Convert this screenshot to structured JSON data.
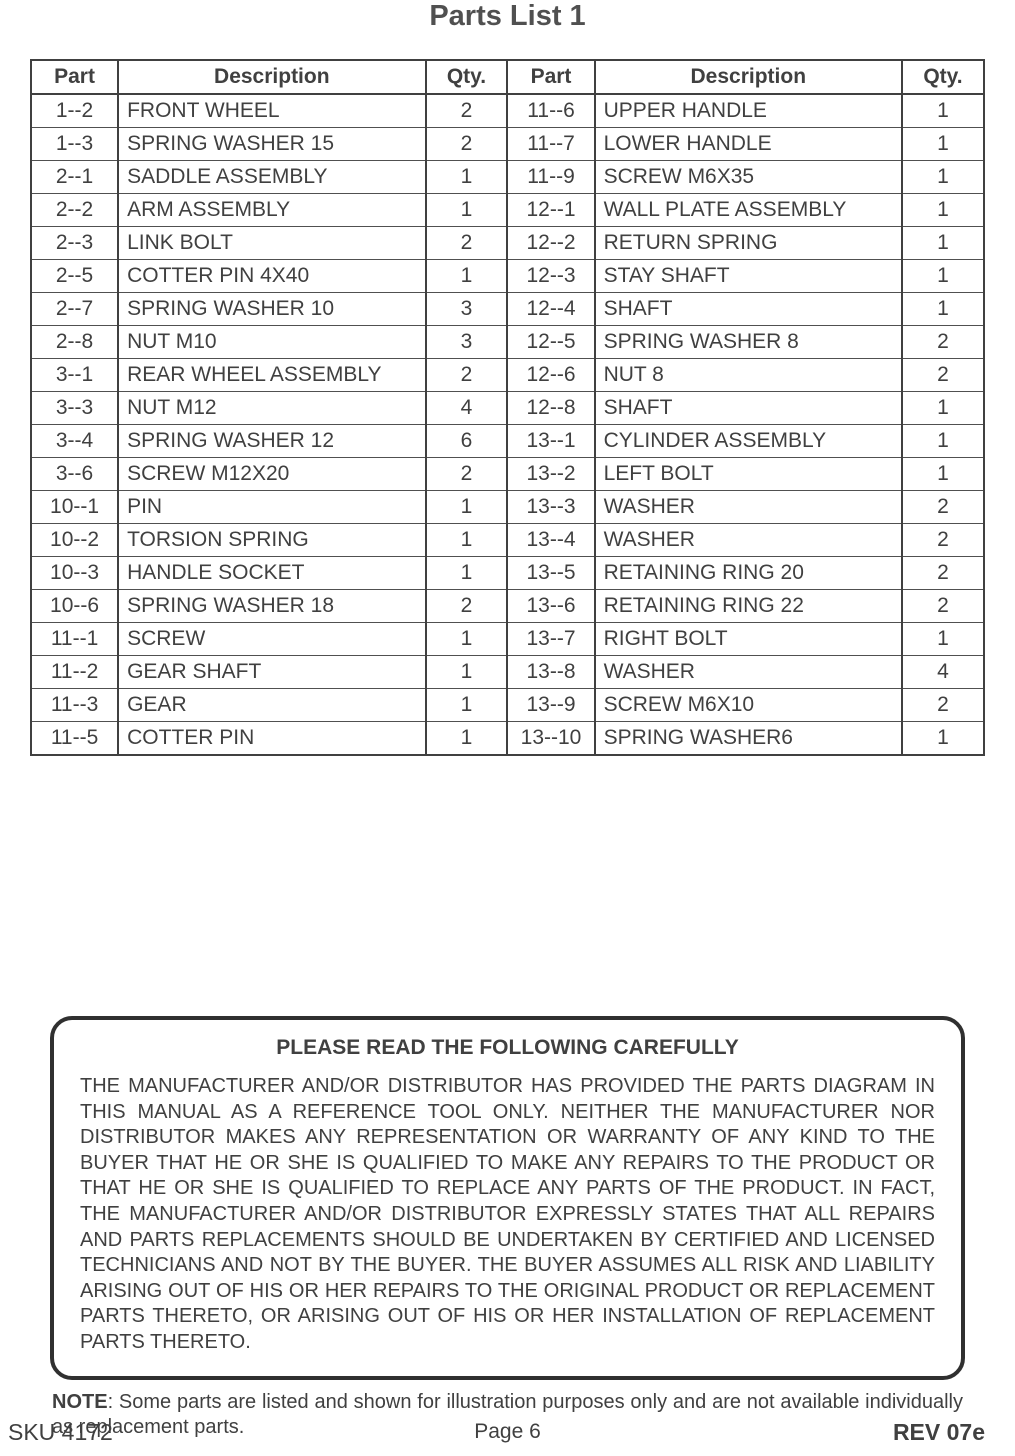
{
  "title": "Parts List 1",
  "headers": {
    "part": "Part",
    "desc": "Description",
    "qty": "Qty."
  },
  "rows": [
    {
      "l": {
        "part": "1--2",
        "desc": "FRONT WHEEL",
        "qty": "2"
      },
      "r": {
        "part": "11--6",
        "desc": "UPPER HANDLE",
        "qty": "1"
      }
    },
    {
      "l": {
        "part": "1--3",
        "desc": "SPRING WASHER 15",
        "qty": "2"
      },
      "r": {
        "part": "11--7",
        "desc": "LOWER HANDLE",
        "qty": "1"
      }
    },
    {
      "l": {
        "part": "2--1",
        "desc": "SADDLE ASSEMBLY",
        "qty": "1"
      },
      "r": {
        "part": "11--9",
        "desc": "SCREW M6X35",
        "qty": "1"
      }
    },
    {
      "l": {
        "part": "2--2",
        "desc": "ARM ASSEMBLY",
        "qty": "1"
      },
      "r": {
        "part": "12--1",
        "desc": "WALL PLATE ASSEMBLY",
        "qty": "1"
      }
    },
    {
      "l": {
        "part": "2--3",
        "desc": "LINK BOLT",
        "qty": "2"
      },
      "r": {
        "part": "12--2",
        "desc": "RETURN SPRING",
        "qty": "1"
      }
    },
    {
      "l": {
        "part": "2--5",
        "desc": "COTTER PIN 4X40",
        "qty": "1"
      },
      "r": {
        "part": "12--3",
        "desc": "STAY SHAFT",
        "qty": "1"
      }
    },
    {
      "l": {
        "part": "2--7",
        "desc": "SPRING WASHER 10",
        "qty": "3"
      },
      "r": {
        "part": "12--4",
        "desc": "SHAFT",
        "qty": "1"
      }
    },
    {
      "l": {
        "part": "2--8",
        "desc": "NUT M10",
        "qty": "3"
      },
      "r": {
        "part": "12--5",
        "desc": "SPRING WASHER 8",
        "qty": "2"
      }
    },
    {
      "l": {
        "part": "3--1",
        "desc": "REAR WHEEL ASSEMBLY",
        "qty": "2"
      },
      "r": {
        "part": "12--6",
        "desc": "NUT 8",
        "qty": "2"
      }
    },
    {
      "l": {
        "part": "3--3",
        "desc": "NUT M12",
        "qty": "4"
      },
      "r": {
        "part": "12--8",
        "desc": "SHAFT",
        "qty": "1"
      }
    },
    {
      "l": {
        "part": "3--4",
        "desc": "SPRING WASHER 12",
        "qty": "6"
      },
      "r": {
        "part": "13--1",
        "desc": "CYLINDER ASSEMBLY",
        "qty": "1"
      }
    },
    {
      "l": {
        "part": "3--6",
        "desc": "SCREW M12X20",
        "qty": "2"
      },
      "r": {
        "part": "13--2",
        "desc": "LEFT BOLT",
        "qty": "1"
      }
    },
    {
      "l": {
        "part": "10--1",
        "desc": "PIN",
        "qty": "1"
      },
      "r": {
        "part": "13--3",
        "desc": "WASHER",
        "qty": "2"
      }
    },
    {
      "l": {
        "part": "10--2",
        "desc": "TORSION SPRING",
        "qty": "1"
      },
      "r": {
        "part": "13--4",
        "desc": "WASHER",
        "qty": "2"
      }
    },
    {
      "l": {
        "part": "10--3",
        "desc": "HANDLE SOCKET",
        "qty": "1"
      },
      "r": {
        "part": "13--5",
        "desc": "RETAINING RING 20",
        "qty": "2"
      }
    },
    {
      "l": {
        "part": "10--6",
        "desc": "SPRING WASHER 18",
        "qty": "2"
      },
      "r": {
        "part": "13--6",
        "desc": "RETAINING RING 22",
        "qty": "2"
      }
    },
    {
      "l": {
        "part": "11--1",
        "desc": "SCREW",
        "qty": "1"
      },
      "r": {
        "part": "13--7",
        "desc": "RIGHT BOLT",
        "qty": "1"
      }
    },
    {
      "l": {
        "part": "11--2",
        "desc": "GEAR SHAFT",
        "qty": "1"
      },
      "r": {
        "part": "13--8",
        "desc": "WASHER",
        "qty": "4"
      }
    },
    {
      "l": {
        "part": "11--3",
        "desc": "GEAR",
        "qty": "1"
      },
      "r": {
        "part": "13--9",
        "desc": "SCREW M6X10",
        "qty": "2"
      }
    },
    {
      "l": {
        "part": "11--5",
        "desc": "COTTER PIN",
        "qty": "1"
      },
      "r": {
        "part": "13--10",
        "desc": "SPRING WASHER6",
        "qty": "1"
      }
    }
  ],
  "notice": {
    "title": "PLEASE READ THE FOLLOWING CAREFULLY",
    "body": "THE MANUFACTURER AND/OR DISTRIBUTOR HAS PROVIDED THE PARTS DIAGRAM IN THIS MANUAL AS A REFERENCE TOOL ONLY.  NEITHER THE MANUFACTURER NOR DISTRIBUTOR MAKES ANY REPRESENTATION OR WARRANTY OF ANY KIND TO THE BUYER THAT HE OR SHE IS QUALIFIED TO MAKE ANY REPAIRS TO THE PRODUCT OR THAT HE OR SHE IS QUALIFIED TO REPLACE ANY PARTS OF THE PRODUCT.  IN FACT, THE MANUFACTURER AND/OR DISTRIBUTOR EXPRESSLY STATES THAT ALL REPAIRS AND PARTS REPLACEMENTS SHOULD BE UNDERTAKEN BY CERTIFIED AND LICENSED TECHNICIANS AND NOT BY THE BUYER. THE BUYER ASSUMES ALL RISK AND LIABILITY ARISING OUT OF HIS OR HER REPAIRS TO THE ORIGINAL PRODUCT OR REPLACEMENT PARTS THERETO, OR ARISING OUT OF HIS OR HER INSTALLATION OF REPLACEMENT PARTS THERETO."
  },
  "note": {
    "label": "NOTE",
    "text": ": Some parts are listed and shown for illustration purposes only and are not available individually as replacement parts."
  },
  "footer": {
    "sku": "SKU 4172",
    "page": "Page 6",
    "rev": "REV 07e"
  }
}
